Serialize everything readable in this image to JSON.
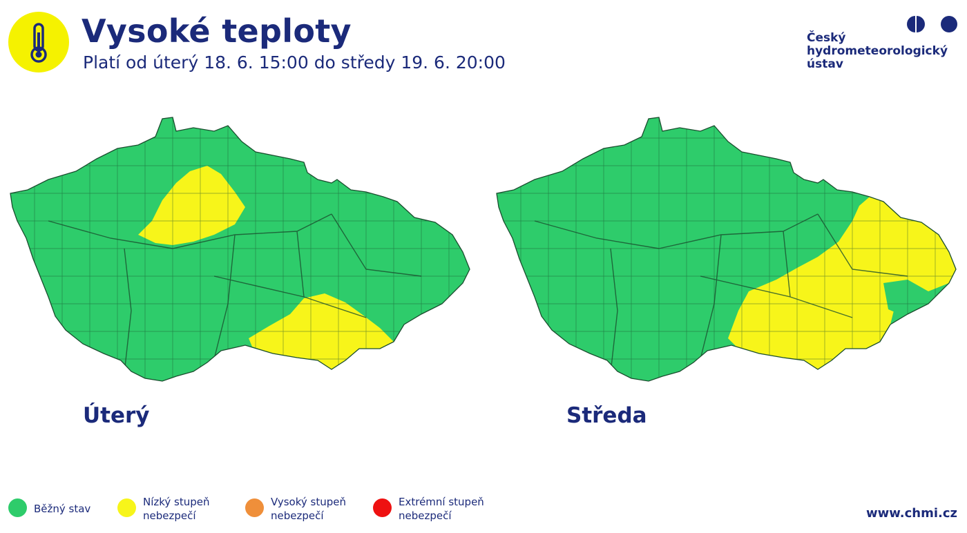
{
  "header": {
    "title": "Vysoké teploty",
    "subtitle": "Platí od úterý 18. 6. 15:00 do středy 19. 6. 20:00",
    "icon": "thermometer-icon"
  },
  "logo": {
    "line1": "Český",
    "line2": "hydrometeorologický",
    "line3": "ústav"
  },
  "maps": [
    {
      "label": "Úterý",
      "highlighted_regions": [
        "Praha a okolí (střední Čechy)",
        "jižní Morava"
      ]
    },
    {
      "label": "Středa",
      "highlighted_regions": [
        "jižní Morava",
        "východní Morava a Slezsko"
      ]
    }
  ],
  "legend": [
    {
      "line1": "Běžný stav",
      "line2": "",
      "color": "#2ecc6b"
    },
    {
      "line1": "Nízký stupeň",
      "line2": "nebezpečí",
      "color": "#f7f51a"
    },
    {
      "line1": "Vysoký stupeň",
      "line2": "nebezpečí",
      "color": "#ef8f3a"
    },
    {
      "line1": "Extrémní stupeň",
      "line2": "nebezpečí",
      "color": "#ee1111"
    }
  ],
  "colors": {
    "brand": "#1b2a7a",
    "normal": "#2ecc6b",
    "low": "#f7f51a",
    "badge": "#f5f200"
  },
  "footer": {
    "url": "www.chmi.cz"
  }
}
